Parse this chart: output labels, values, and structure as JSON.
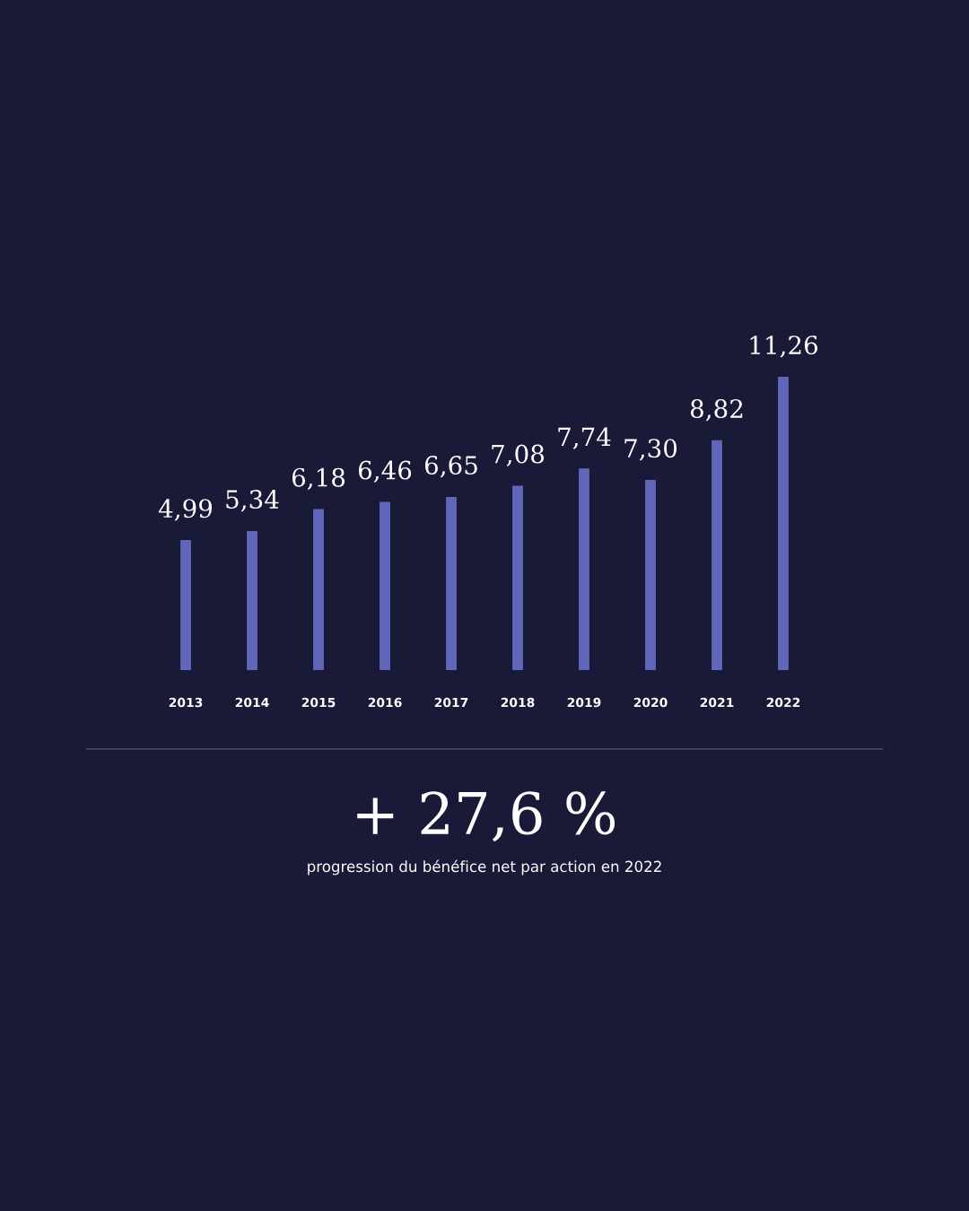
{
  "chart_data": {
    "type": "bar",
    "categories": [
      "2013",
      "2014",
      "2015",
      "2016",
      "2017",
      "2018",
      "2019",
      "2020",
      "2021",
      "2022"
    ],
    "values": [
      4.99,
      5.34,
      6.18,
      6.46,
      6.65,
      7.08,
      7.74,
      7.3,
      8.82,
      11.26
    ],
    "value_labels": [
      "4,99",
      "5,34",
      "6,18",
      "6,46",
      "6,65",
      "7,08",
      "7,74",
      "7,30",
      "8,82",
      "11,26"
    ],
    "color": "#6066b8",
    "tick_labels": "x",
    "grid": false,
    "legend": false,
    "annotations": [
      "+ 27,6 %",
      "progression du bénéfice net par action en 2022"
    ]
  }
}
